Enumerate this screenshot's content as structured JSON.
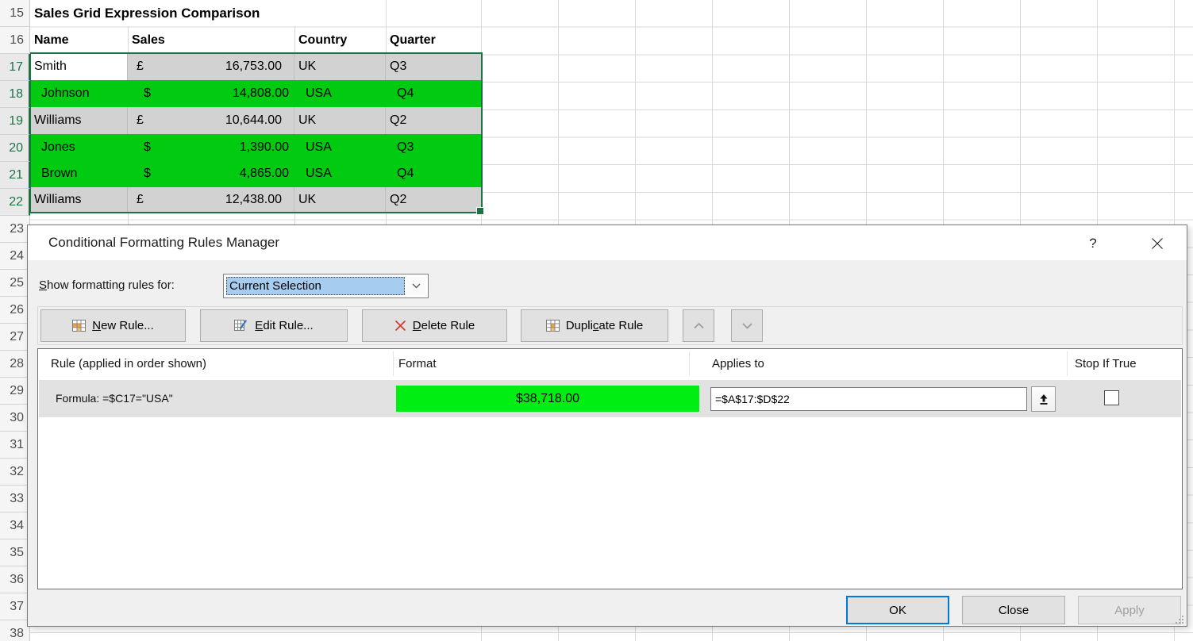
{
  "colors": {
    "green_fill": "#00cb10",
    "swatch_green": "#00ee12",
    "selection_gray": "#d2d2d2",
    "excel_green": "#1e7145",
    "combo_highlight": "#a6cdf0",
    "ok_border": "#0078d7"
  },
  "sheet": {
    "title_cell": "Sales Grid Expression Comparison",
    "columns": {
      "name": "Name",
      "sales": "Sales",
      "country": "Country",
      "quarter": "Quarter"
    },
    "row_numbers": [
      15,
      16,
      17,
      18,
      19,
      20,
      21,
      22,
      23,
      24,
      25,
      26,
      27,
      28,
      29,
      30,
      31,
      32,
      33,
      34,
      35,
      36,
      37,
      38
    ],
    "selected_rows": [
      17,
      18,
      19,
      20,
      21,
      22
    ],
    "rows": [
      {
        "row": 17,
        "name": "Smith",
        "currency": "£",
        "amount": "16,753.00",
        "country": "UK",
        "quarter": "Q3",
        "highlight": "selection-gray-active-name"
      },
      {
        "row": 18,
        "name": "Johnson",
        "currency": "$",
        "amount": "14,808.00",
        "country": "USA",
        "quarter": "Q4",
        "highlight": "green"
      },
      {
        "row": 19,
        "name": "Williams",
        "currency": "£",
        "amount": "10,644.00",
        "country": "UK",
        "quarter": "Q2",
        "highlight": "selection-gray"
      },
      {
        "row": 20,
        "name": "Jones",
        "currency": "$",
        "amount": "1,390.00",
        "country": "USA",
        "quarter": "Q3",
        "highlight": "green"
      },
      {
        "row": 21,
        "name": "Brown",
        "currency": "$",
        "amount": "4,865.00",
        "country": "USA",
        "quarter": "Q4",
        "highlight": "green"
      },
      {
        "row": 22,
        "name": "Williams",
        "currency": "£",
        "amount": "12,438.00",
        "country": "UK",
        "quarter": "Q2",
        "highlight": "selection-gray"
      }
    ],
    "selected_range": "A17:D22"
  },
  "dialog": {
    "title": "Conditional Formatting Rules Manager",
    "help_label": "?",
    "show_rules": {
      "pre": "",
      "key": "S",
      "post": "how formatting rules for:",
      "value": "Current Selection"
    },
    "toolbar": {
      "new_rule": {
        "pre": "",
        "key": "N",
        "post": "ew Rule..."
      },
      "edit_rule": {
        "pre": "",
        "key": "E",
        "post": "dit Rule..."
      },
      "delete_rule": {
        "pre": "",
        "key": "D",
        "post": "elete Rule"
      },
      "duplicate_rule": {
        "pre": "Dupli",
        "key": "c",
        "post": "ate Rule"
      }
    },
    "list": {
      "headers": [
        "Rule (applied in order shown)",
        "Format",
        "Applies to",
        "Stop If True"
      ],
      "rules": [
        {
          "rule": "Formula: =$C17=\"USA\"",
          "format_preview": "$38,718.00",
          "applies_to": "=$A$17:$D$22",
          "stop_if_true": false
        }
      ]
    },
    "buttons": {
      "ok": "OK",
      "close": "Close",
      "apply": "Apply"
    }
  }
}
